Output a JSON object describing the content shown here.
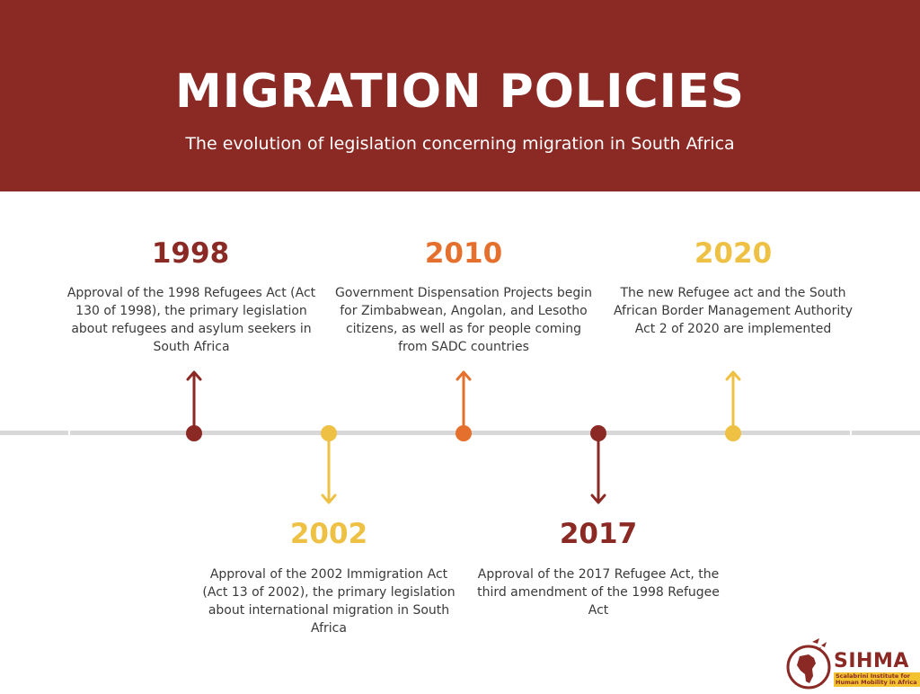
{
  "header": {
    "title": "MIGRATION POLICIES",
    "subtitle": "The evolution of legislation concerning migration in South Africa"
  },
  "colors": {
    "header_bg": "#8b2924",
    "dark_red": "#8b2924",
    "orange": "#e56f2c",
    "yellow": "#eec043",
    "line": "#d8d8d8"
  },
  "events": [
    {
      "year": "1998",
      "color": "#8b2924",
      "direction": "up",
      "description": "Approval of the 1998 Refugees Act (Act 130 of 1998), the primary legislation about refugees and asylum seekers in South Africa"
    },
    {
      "year": "2002",
      "color": "#eec043",
      "direction": "down",
      "description": "Approval of the 2002 Immigration Act (Act 13 of 2002), the primary legislation about international migration in South Africa"
    },
    {
      "year": "2010",
      "color": "#e56f2c",
      "direction": "up",
      "description": "Government Dispensation Projects begin for Zimbabwean, Angolan, and Lesotho citizens, as well as for people coming from SADC countries"
    },
    {
      "year": "2017",
      "color": "#8b2924",
      "direction": "down",
      "description": "Approval of the 2017 Refugee Act, the third amendment of the 1998 Refugee Act"
    },
    {
      "year": "2020",
      "color": "#eec043",
      "direction": "up",
      "description": "The new Refugee act and the South African Border Management Authority Act 2 of 2020 are implemented"
    }
  ],
  "logo": {
    "name": "SIHMA",
    "tagline": "Scalabrini Institute for Human Mobility in Africa"
  }
}
